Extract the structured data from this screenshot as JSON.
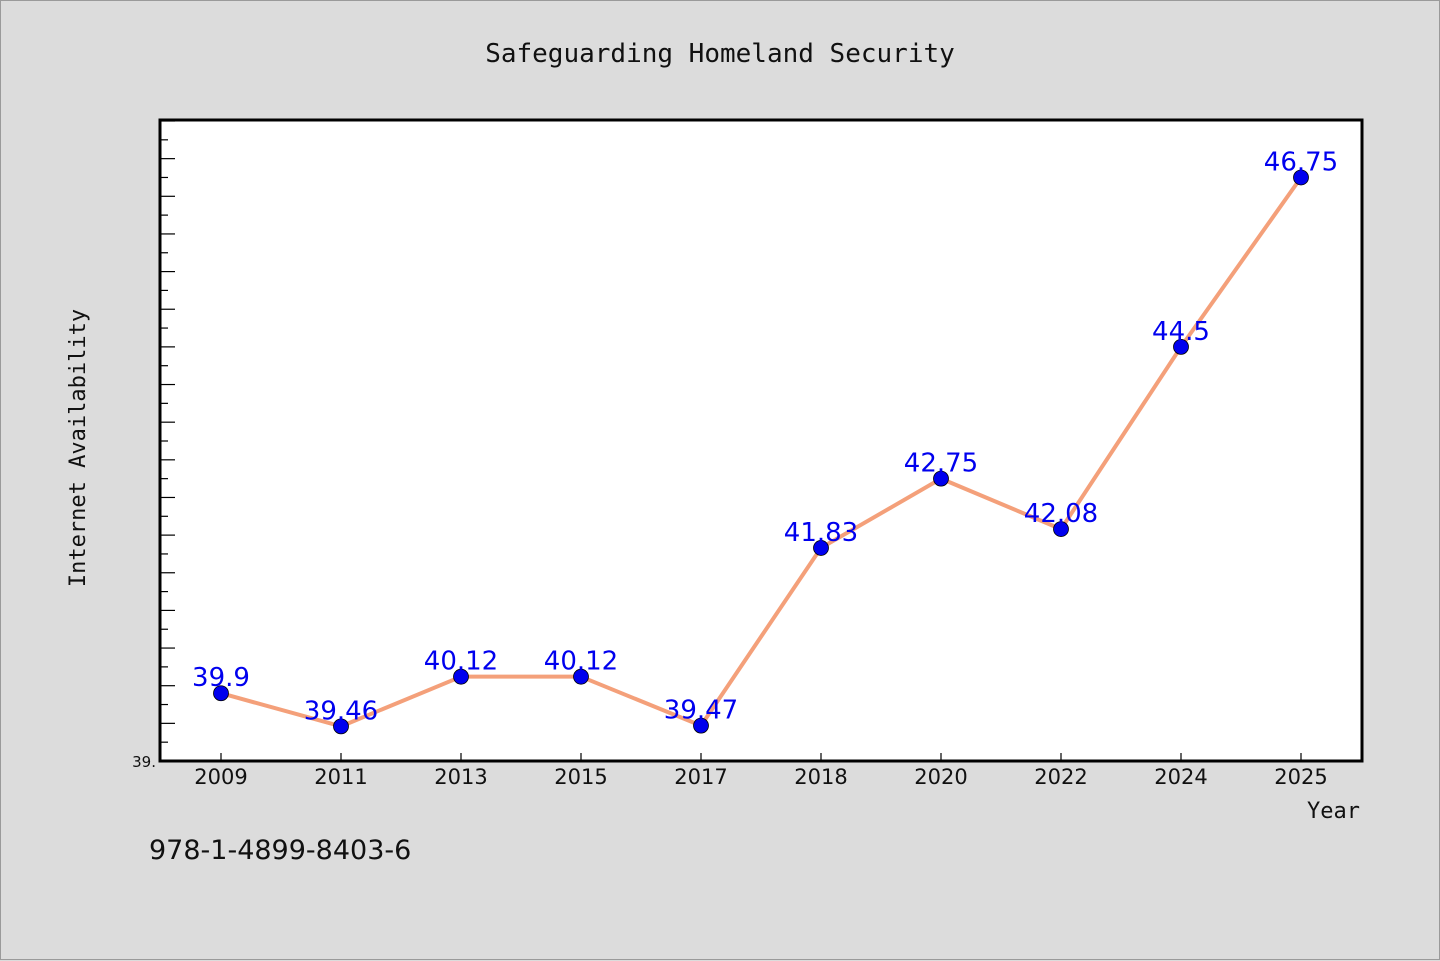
{
  "chart_data": {
    "type": "line",
    "title": "Safeguarding Homeland Security",
    "xlabel": "Year",
    "ylabel": "Internet Availability",
    "categories": [
      "2009",
      "2011",
      "2013",
      "2015",
      "2017",
      "2018",
      "2020",
      "2022",
      "2024",
      "2025"
    ],
    "series": [
      {
        "values": [
          39.9,
          39.46,
          40.12,
          40.12,
          39.47,
          41.83,
          42.75,
          42.08,
          44.5,
          46.75
        ],
        "labels": [
          "39.9",
          "39.46",
          "40.12",
          "40.12",
          "39.47",
          "41.83",
          "42.75",
          "42.08",
          "44.5",
          "46.75"
        ]
      }
    ],
    "ylim": [
      39.0,
      47.5
    ],
    "y_tick_label": "39.",
    "grid": false,
    "legend": "none",
    "colors": {
      "line": "#f4a07a",
      "marker": "#0000ee",
      "label": "#0000ee",
      "plot_bg": "#ffffff",
      "figure_bg": "#dcdcdc"
    }
  },
  "footer": {
    "isbn": "978-1-4899-8403-6"
  }
}
